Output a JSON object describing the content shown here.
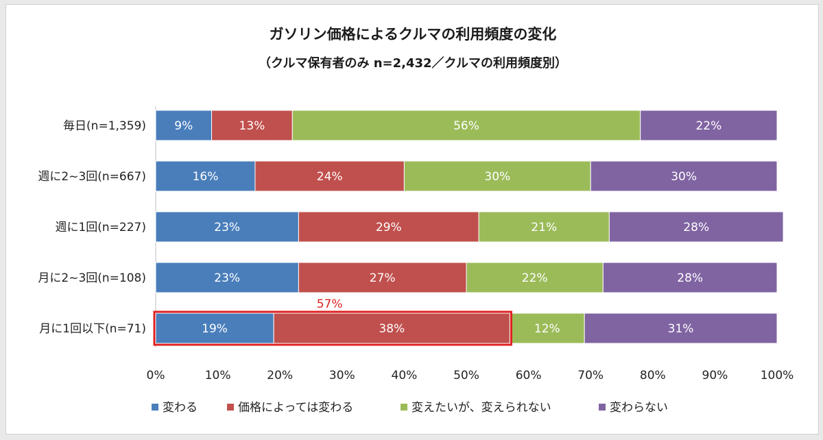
{
  "chart_data": {
    "type": "bar",
    "orientation": "horizontal",
    "stacked": true,
    "title": "ガソリン価格によるクルマの利用頻度の変化",
    "subtitle": "（クルマ保有者のみ n=2,432／クルマの利用頻度別）",
    "categories": [
      "毎日(n=1,359)",
      "週に2~3回(n=667)",
      "週に1回(n=227)",
      "月に2~3回(n=108)",
      "月に1回以下(n=71)"
    ],
    "series": [
      {
        "name": "変わる",
        "values": [
          9,
          16,
          23,
          23,
          19
        ],
        "labels": [
          "9%",
          "16%",
          "23%",
          "23%",
          "19%"
        ]
      },
      {
        "name": "価格によっては変わる",
        "values": [
          13,
          24,
          29,
          27,
          38
        ],
        "labels": [
          "13%",
          "24%",
          "29%",
          "27%",
          "38%"
        ]
      },
      {
        "name": "変えたいが、変えられない",
        "values": [
          56,
          30,
          21,
          22,
          12
        ],
        "labels": [
          "56%",
          "30%",
          "21%",
          "22%",
          "12%"
        ]
      },
      {
        "name": "変わらない",
        "values": [
          22,
          30,
          28,
          28,
          31
        ],
        "labels": [
          "22%",
          "30%",
          "28%",
          "28%",
          "31%"
        ]
      }
    ],
    "colors": [
      "#4a7ebb",
      "#c0504d",
      "#9bbb59",
      "#8064a2"
    ],
    "xlim": [
      0,
      100
    ],
    "xticks": [
      "0%",
      "10%",
      "20%",
      "30%",
      "40%",
      "50%",
      "60%",
      "70%",
      "80%",
      "90%",
      "100%"
    ],
    "grid": false,
    "legend_position": "bottom",
    "annotation": {
      "text": "57%",
      "category_index": 4,
      "value": 57,
      "highlight_color": "#e02020"
    }
  }
}
